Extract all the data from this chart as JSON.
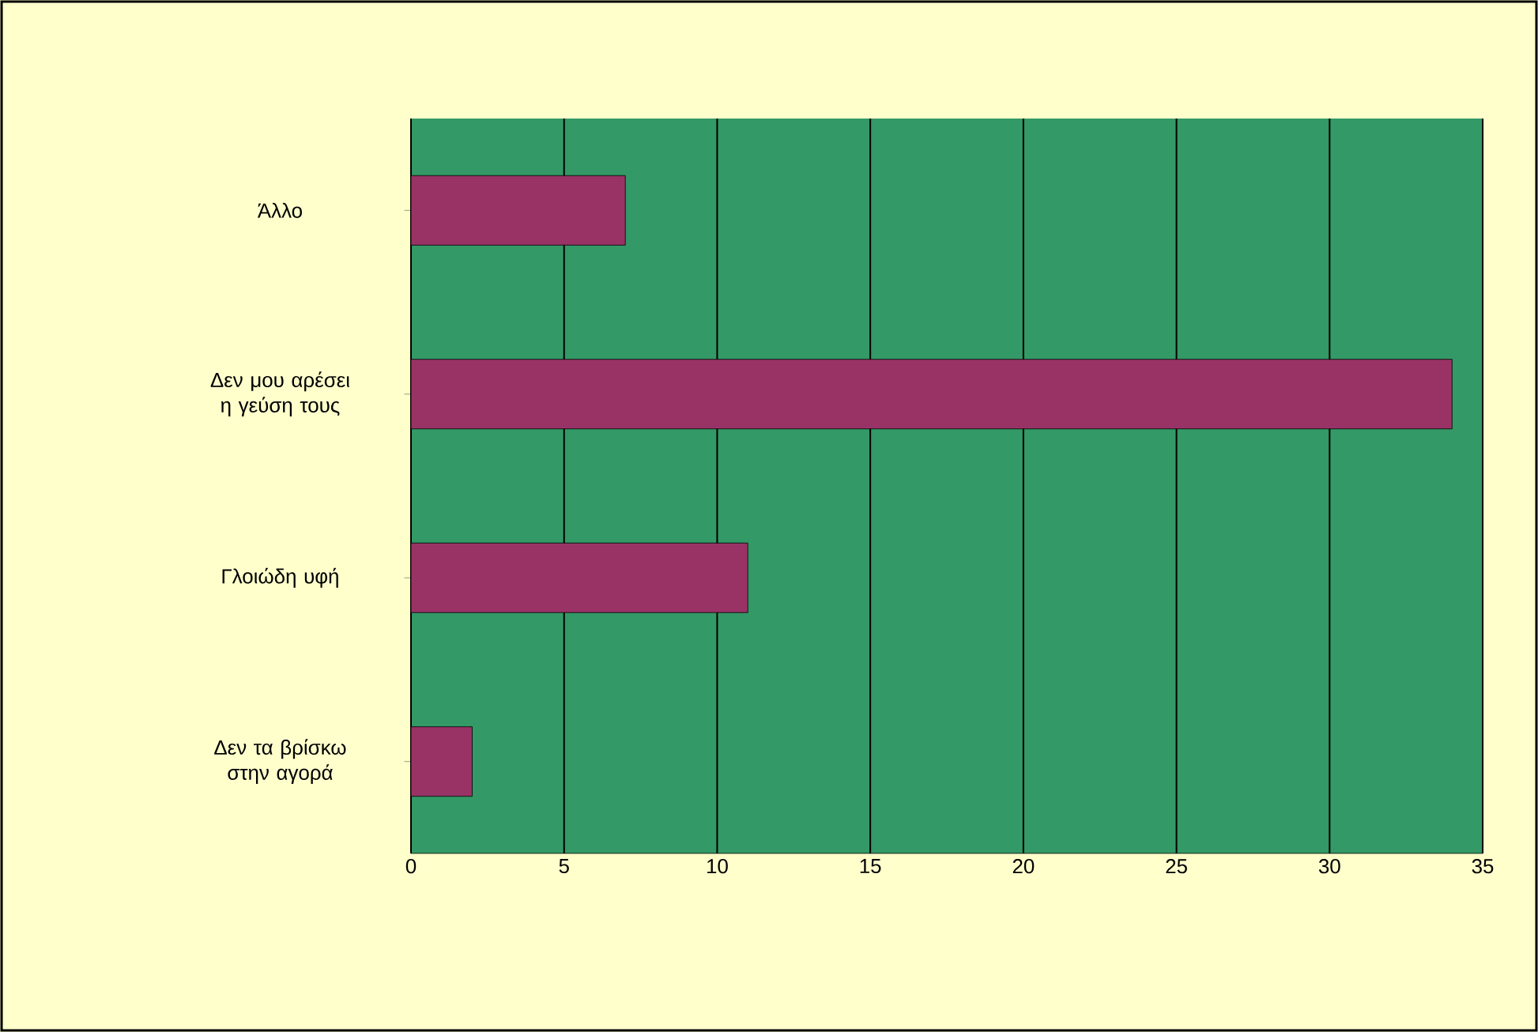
{
  "chart_data": {
    "type": "bar",
    "orientation": "horizontal",
    "categories": [
      "Άλλο",
      "Δεν μου αρέσει η γεύση τους",
      "Γλοιώδη υφή",
      "Δεν τα βρίσκω στην αγορά"
    ],
    "values": [
      7,
      34,
      11,
      2
    ],
    "color": "#993366",
    "xlim": [
      0,
      35
    ],
    "xticks": [
      0,
      5,
      10,
      15,
      20,
      25,
      30,
      35
    ],
    "grid": "x"
  }
}
